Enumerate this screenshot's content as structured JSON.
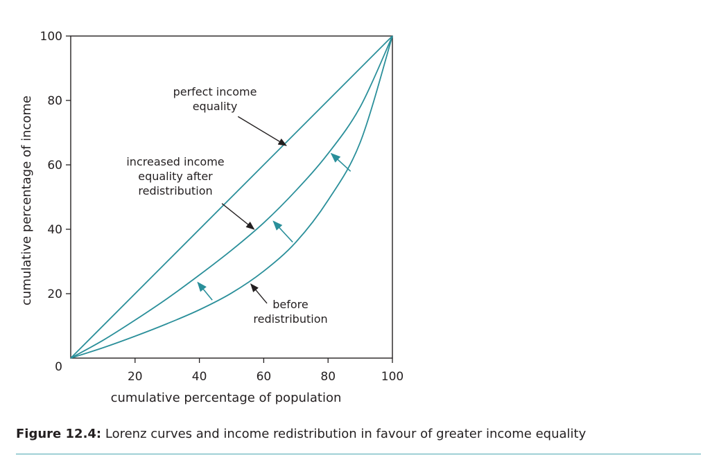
{
  "chart_data": {
    "type": "line",
    "xlabel": "cumulative percentage of population",
    "ylabel": "cumulative percentage of income",
    "xlim": [
      0,
      100
    ],
    "ylim": [
      0,
      100
    ],
    "x_ticks": [
      20,
      40,
      60,
      80,
      100
    ],
    "y_ticks": [
      20,
      40,
      60,
      80,
      100
    ],
    "origin_label": "0",
    "grid": false,
    "line_color": "#2a8f9a",
    "arrow_color": "#2a8f9a",
    "series": [
      {
        "key": "equality",
        "x": [
          0,
          100
        ],
        "y": [
          0,
          100
        ]
      },
      {
        "key": "after",
        "x": [
          0,
          10,
          20,
          30,
          40,
          50,
          60,
          70,
          80,
          90,
          100
        ],
        "y": [
          0,
          5.5,
          11.8,
          18.5,
          25.8,
          33.5,
          42,
          52,
          63.5,
          78,
          100
        ]
      },
      {
        "key": "before",
        "x": [
          0,
          10,
          20,
          30,
          40,
          50,
          60,
          70,
          80,
          90,
          100
        ],
        "y": [
          0,
          3.2,
          6.8,
          10.7,
          15,
          20.2,
          27,
          36,
          49,
          67,
          100
        ]
      }
    ],
    "shift_arrows": [
      {
        "from": [
          44,
          18
        ],
        "to": [
          39.5,
          23.5
        ]
      },
      {
        "from": [
          69,
          36
        ],
        "to": [
          63,
          42.5
        ]
      },
      {
        "from": [
          87,
          58
        ],
        "to": [
          81,
          63.5
        ]
      }
    ],
    "annotations": [
      {
        "key": "perfect-equality-annotation",
        "lines": [
          "perfect income",
          "equality"
        ],
        "arrow_from": [
          52,
          75
        ],
        "arrow_to": [
          67,
          66
        ]
      },
      {
        "key": "increased-equality-annotation",
        "lines": [
          "increased income",
          "equality after",
          "redistribution"
        ],
        "arrow_from": [
          47,
          48
        ],
        "arrow_to": [
          57,
          40
        ]
      },
      {
        "key": "before-redistribution-annotation",
        "lines": [
          "before",
          "redistribution"
        ],
        "arrow_from": [
          61,
          17
        ],
        "arrow_to": [
          56,
          23
        ]
      }
    ]
  },
  "caption": {
    "label": "Figure 12.4:",
    "text": " Lorenz curves and income redistribution in favour of greater income equality"
  }
}
